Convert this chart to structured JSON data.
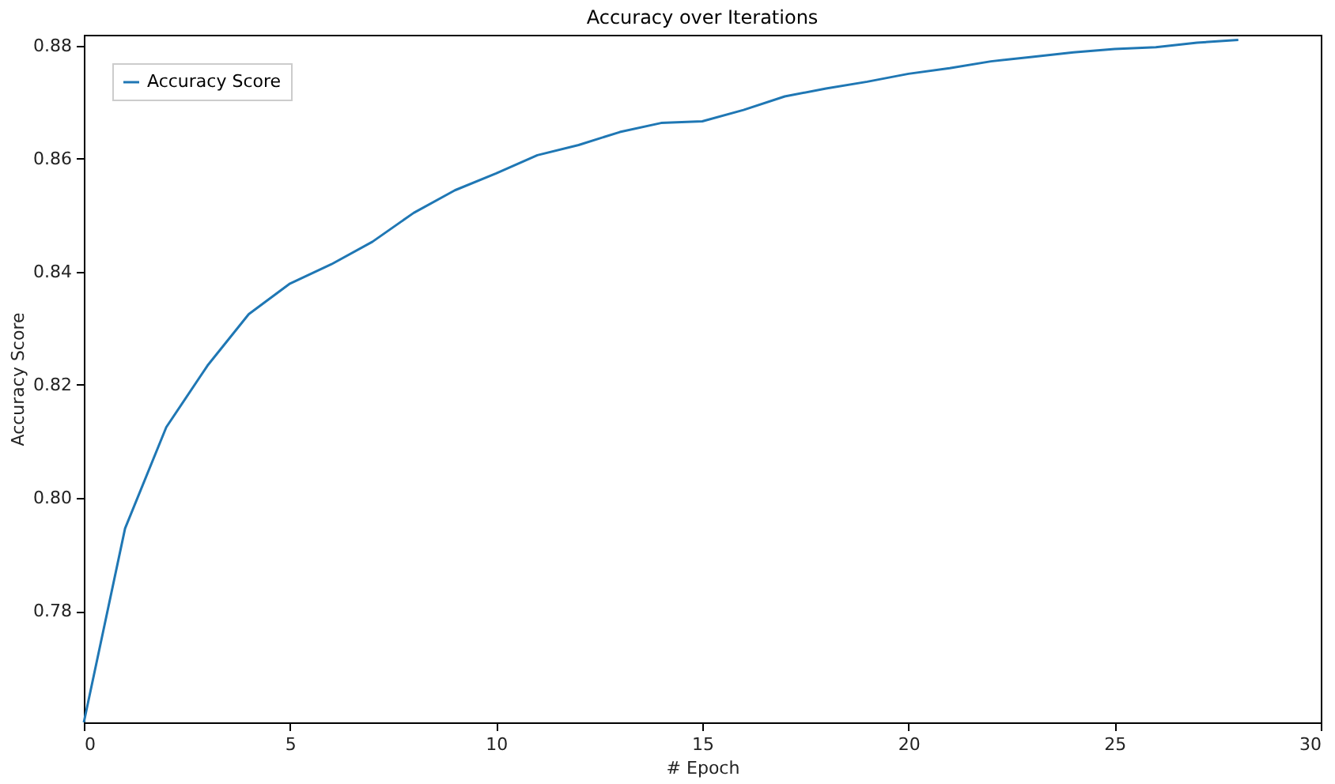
{
  "chart_data": {
    "type": "line",
    "title": "Accuracy over Iterations",
    "xlabel": "# Epoch",
    "ylabel": "Accuracy Score",
    "x": [
      0,
      1,
      2,
      3,
      4,
      5,
      6,
      7,
      8,
      9,
      10,
      11,
      12,
      13,
      14,
      15,
      16,
      17,
      18,
      19,
      20,
      21,
      22,
      23,
      24,
      25,
      26,
      27,
      28
    ],
    "series": [
      {
        "name": "Accuracy Score",
        "color": "#1f77b4",
        "values": [
          0.7603,
          0.7946,
          0.8125,
          0.8234,
          0.8325,
          0.8379,
          0.8413,
          0.8453,
          0.8504,
          0.8544,
          0.8574,
          0.8606,
          0.8624,
          0.8647,
          0.8663,
          0.8666,
          0.8686,
          0.871,
          0.8724,
          0.8736,
          0.875,
          0.876,
          0.8772,
          0.878,
          0.8788,
          0.8794,
          0.8797,
          0.8805,
          0.881
        ]
      }
    ],
    "xlim": [
      0,
      30
    ],
    "xticks": [
      0,
      5,
      10,
      15,
      20,
      25,
      30
    ],
    "ylim": [
      0.7603,
      0.8819
    ],
    "yticks": [
      0.78,
      {
        "value": 0.8,
        "label": "0.80"
      },
      0.82,
      0.84,
      0.86,
      0.88
    ],
    "grid": false,
    "legend": "top left",
    "marker": "none",
    "line_style": "solid"
  }
}
